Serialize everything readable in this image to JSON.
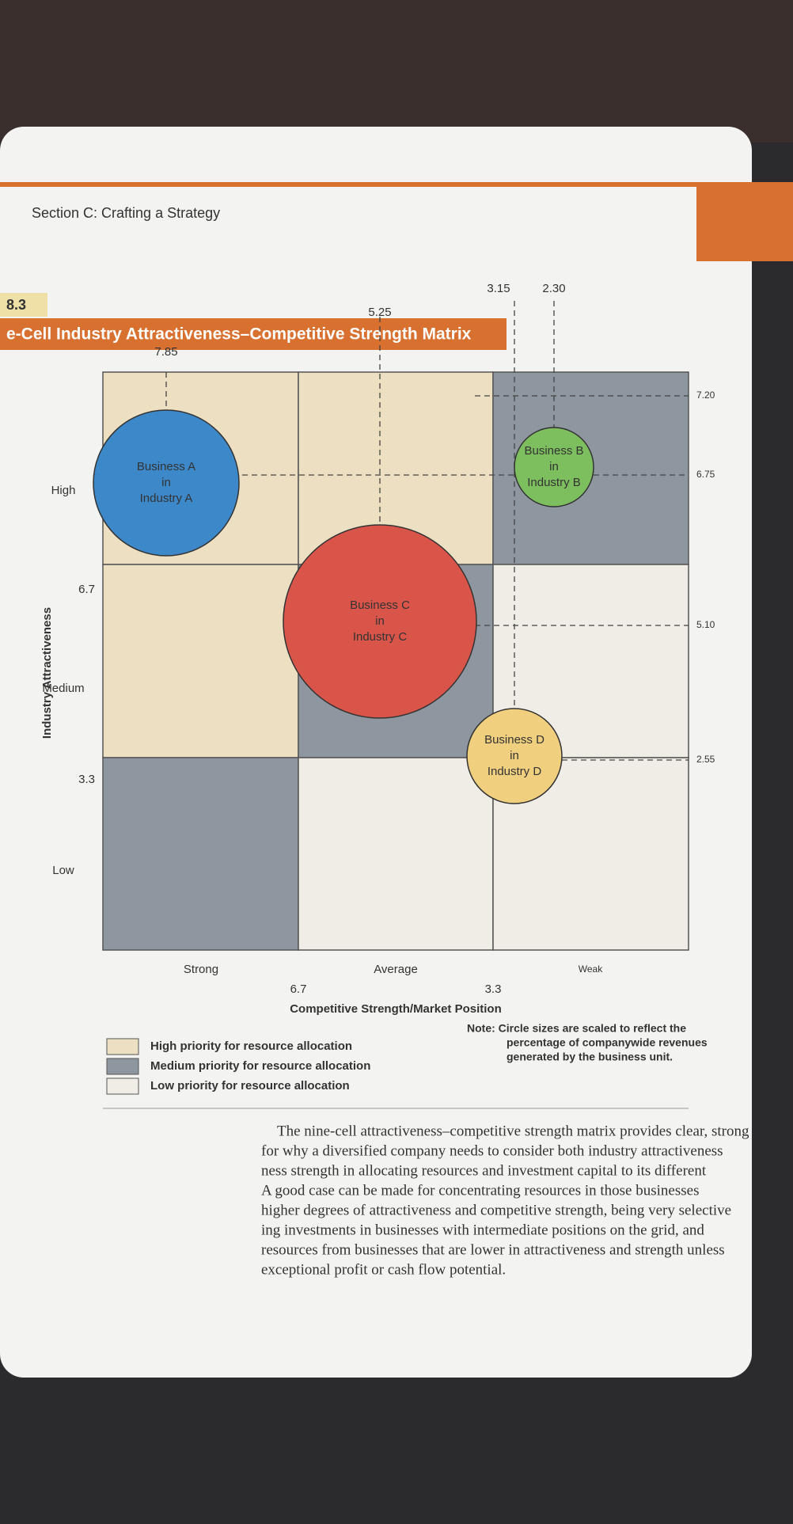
{
  "header": {
    "section": "Section C: Crafting a Strategy",
    "figure_number": "8.3",
    "figure_title": "e-Cell Industry Attractiveness–Competitive Strength Matrix"
  },
  "matrix": {
    "y_axis_title": "Industry Attractiveness",
    "rows": [
      "High",
      "Medium",
      "Low"
    ],
    "row_breaks": [
      "6.7",
      "3.3"
    ],
    "x_axis_title": "Competitive Strength/Market Position",
    "columns": [
      "Strong",
      "Average",
      "Weak"
    ],
    "column_breaks": [
      "6.7",
      "3.3"
    ],
    "top_values": [
      "7.85",
      "5.25",
      "3.15",
      "2.30"
    ],
    "right_values": [
      "7.20",
      "6.75",
      "5.10",
      "2.55"
    ],
    "businesses": [
      {
        "line1": "Business A",
        "line2": "in",
        "line3": "Industry A"
      },
      {
        "line1": "Business B",
        "line2": "in",
        "line3": "Industry B"
      },
      {
        "line1": "Business C",
        "line2": "in",
        "line3": "Industry C"
      },
      {
        "line1": "Business D",
        "line2": "in",
        "line3": "Industry D"
      }
    ],
    "note": [
      "Note: Circle sizes are scaled to reflect the",
      "percentage of companywide revenues",
      "generated by the business unit."
    ]
  },
  "legend": [
    "High priority for resource allocation",
    "Medium priority for resource allocation",
    "Low priority for resource allocation"
  ],
  "body": [
    "The nine-cell attractiveness–competitive strength matrix provides clear, strong",
    "for why a diversified company needs to consider both industry attractiveness",
    "ness strength in allocating resources and investment capital to its different",
    "A good case can be made for concentrating resources in those businesses",
    "higher degrees of attractiveness and competitive strength, being very selective",
    "ing investments in businesses with intermediate positions on the grid, and",
    "resources from businesses that are lower in attractiveness and strength unless",
    "exceptional profit or cash flow potential."
  ]
}
